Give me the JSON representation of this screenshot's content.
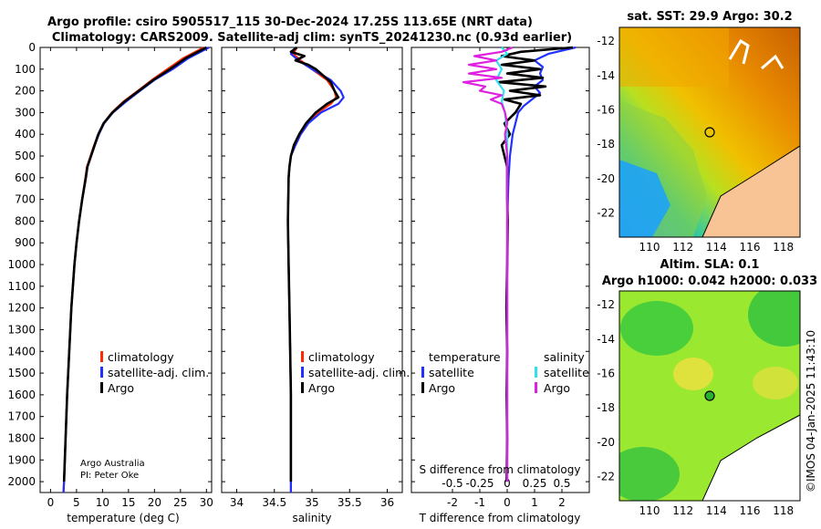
{
  "title_line1": "Argo profile: csiro 5905517_115 30-Dec-2024 17.25S 113.65E (NRT data)",
  "title_line2": "Climatology: CARS2009. Satellite-adj clim: synTS_20241230.nc (0.93d earlier)",
  "credit_org": "Argo Australia",
  "credit_pi": "PI: Peter Oke",
  "timestamp": "©IMOS 04-Jan-2025 11:43:10",
  "colors": {
    "climatology": "#ff2a00",
    "satellite": "#2030ff",
    "argo": "#000000",
    "sat_salt": "#30e0f0",
    "argo_salt": "#e020e0"
  },
  "map_sst": {
    "title": "sat. SST: 29.9 Argo: 30.2",
    "lon_ticks": [
      "110",
      "112",
      "114",
      "116",
      "118"
    ],
    "lat_ticks": [
      "-12",
      "-14",
      "-16",
      "-18",
      "-20",
      "-22"
    ]
  },
  "map_sla": {
    "title1": "Altim. SLA: 0.1",
    "title2": "Argo h1000: 0.042 h2000: 0.033",
    "lon_ticks": [
      "110",
      "112",
      "114",
      "116",
      "118"
    ],
    "lat_ticks": [
      "-12",
      "-14",
      "-16",
      "-18",
      "-20",
      "-22"
    ]
  },
  "legend": {
    "climatology": "climatology",
    "satellite_adj": "satellite-adj. clim.",
    "argo": "Argo",
    "temperature": "temperature",
    "salinity": "salinity",
    "satellite": "satellite"
  },
  "chart_data": [
    {
      "type": "line",
      "title": "",
      "xlabel": "temperature (deg C)",
      "ylabel": "",
      "xlim": [
        -2,
        31
      ],
      "ylim": [
        2050,
        0
      ],
      "xticks": [
        "0",
        "5",
        "10",
        "15",
        "20",
        "25",
        "30"
      ],
      "xtick_values": [
        0,
        5,
        10,
        15,
        20,
        25,
        30
      ],
      "yticks": [
        "0",
        "100",
        "200",
        "300",
        "400",
        "500",
        "600",
        "700",
        "800",
        "900",
        "1000",
        "1100",
        "1200",
        "1300",
        "1400",
        "1500",
        "1600",
        "1700",
        "1800",
        "1900",
        "2000"
      ],
      "ytick_values": [
        0,
        100,
        200,
        300,
        400,
        500,
        600,
        700,
        800,
        900,
        1000,
        1100,
        1200,
        1300,
        1400,
        1500,
        1600,
        1700,
        1800,
        1900,
        2000
      ],
      "series": [
        {
          "name": "climatology",
          "color_key": "climatology",
          "depth": [
            0,
            50,
            100,
            150,
            200,
            250,
            300,
            350,
            400,
            450,
            500,
            550,
            600,
            700,
            800,
            900,
            1000,
            1200,
            1400,
            1600,
            1800,
            2000,
            2050
          ],
          "values": [
            29.5,
            25.5,
            22.5,
            19.5,
            16.8,
            14.0,
            11.8,
            10.2,
            9.2,
            8.4,
            7.7,
            7.0,
            6.7,
            6.1,
            5.5,
            5.0,
            4.6,
            4.0,
            3.6,
            3.2,
            2.9,
            2.6,
            2.5
          ]
        },
        {
          "name": "satellite-adj. clim.",
          "color_key": "satellite",
          "depth": [
            0,
            50,
            100,
            150,
            200,
            250,
            300,
            350,
            400,
            450,
            500,
            550,
            600,
            700,
            800,
            900,
            1000,
            1200,
            1400,
            1600,
            1800,
            2000,
            2050
          ],
          "values": [
            30.5,
            26.5,
            23.5,
            20.0,
            17.2,
            14.5,
            12.0,
            10.3,
            9.3,
            8.5,
            7.8,
            7.1,
            6.8,
            6.1,
            5.5,
            5.0,
            4.6,
            4.0,
            3.6,
            3.2,
            2.9,
            2.6,
            2.5
          ]
        },
        {
          "name": "Argo",
          "color_key": "argo",
          "depth": [
            0,
            50,
            100,
            150,
            200,
            250,
            300,
            350,
            400,
            450,
            500,
            550,
            600,
            700,
            800,
            900,
            1000,
            1200,
            1400,
            1600,
            1800,
            2000
          ],
          "values": [
            30.0,
            26.0,
            23.0,
            19.8,
            17.0,
            14.2,
            11.9,
            10.2,
            9.2,
            8.5,
            7.8,
            7.1,
            6.8,
            6.1,
            5.5,
            5.0,
            4.6,
            4.0,
            3.6,
            3.2,
            2.9,
            2.6
          ]
        }
      ]
    },
    {
      "type": "line",
      "title": "",
      "xlabel": "salinity",
      "ylabel": "",
      "xlim": [
        33.8,
        36.2
      ],
      "ylim": [
        2050,
        0
      ],
      "xticks": [
        "34",
        "34.5",
        "35",
        "35.5",
        "36"
      ],
      "xtick_values": [
        34,
        34.5,
        35,
        35.5,
        36
      ],
      "series": [
        {
          "name": "climatology",
          "color_key": "climatology",
          "depth": [
            0,
            30,
            60,
            100,
            150,
            200,
            230,
            260,
            300,
            350,
            400,
            450,
            500,
            550,
            600,
            800,
            1000,
            1200,
            1400,
            1600,
            1800,
            2000,
            2050
          ],
          "values": [
            34.8,
            34.75,
            34.85,
            35.0,
            35.2,
            35.3,
            35.32,
            35.25,
            35.08,
            34.95,
            34.85,
            34.78,
            34.72,
            34.7,
            34.69,
            34.68,
            34.69,
            34.7,
            34.71,
            34.72,
            34.72,
            34.72,
            34.72
          ]
        },
        {
          "name": "satellite-adj. clim.",
          "color_key": "satellite",
          "depth": [
            0,
            30,
            60,
            100,
            150,
            200,
            230,
            260,
            300,
            350,
            400,
            450,
            500,
            550,
            600,
            800,
            1000,
            1200,
            1400,
            1600,
            1800,
            2000,
            2050
          ],
          "values": [
            34.78,
            34.72,
            34.82,
            35.0,
            35.25,
            35.38,
            35.42,
            35.35,
            35.12,
            34.95,
            34.85,
            34.78,
            34.72,
            34.7,
            34.69,
            34.68,
            34.69,
            34.7,
            34.71,
            34.72,
            34.72,
            34.72,
            34.72
          ]
        },
        {
          "name": "Argo",
          "color_key": "argo",
          "depth": [
            0,
            20,
            40,
            60,
            80,
            100,
            130,
            160,
            200,
            230,
            260,
            300,
            350,
            400,
            450,
            500,
            550,
            600,
            800,
            1000,
            1200,
            1400,
            1600,
            1800,
            2000
          ],
          "values": [
            34.8,
            34.72,
            34.9,
            34.78,
            34.95,
            35.05,
            35.15,
            35.25,
            35.3,
            35.35,
            35.2,
            35.05,
            34.92,
            34.83,
            34.76,
            34.72,
            34.7,
            34.69,
            34.68,
            34.69,
            34.7,
            34.71,
            34.72,
            34.72,
            34.72
          ]
        }
      ]
    },
    {
      "type": "line",
      "title": "",
      "xlabel": "T difference from climatology",
      "xlabel2": "S difference from climatology",
      "ylabel": "",
      "xlim": [
        -3.5,
        3.0
      ],
      "ylim": [
        2050,
        0
      ],
      "xticks": [
        "-2",
        "-1",
        "0",
        "1",
        "2"
      ],
      "xtick_values": [
        -2,
        -1,
        0,
        1,
        2
      ],
      "s_xticks": [
        "-0.5",
        "-0.25",
        "0",
        "0.25",
        "0.5"
      ],
      "s_xtick_values": [
        -0.5,
        -0.25,
        0,
        0.25,
        0.5
      ],
      "series": [
        {
          "name": "temperature satellite",
          "color_key": "satellite",
          "depth": [
            0,
            30,
            60,
            90,
            120,
            150,
            180,
            210,
            240,
            270,
            300,
            350,
            400,
            500,
            600,
            800,
            1000,
            1500,
            2000
          ],
          "values": [
            2.5,
            1.5,
            1.0,
            1.3,
            1.2,
            1.3,
            1.0,
            1.2,
            0.9,
            0.6,
            0.4,
            0.3,
            0.2,
            0.1,
            0.05,
            0.0,
            0.0,
            0.0,
            0.0
          ]
        },
        {
          "name": "temperature Argo",
          "color_key": "argo",
          "depth": [
            0,
            20,
            40,
            60,
            80,
            100,
            120,
            140,
            160,
            180,
            200,
            220,
            240,
            260,
            300,
            350,
            400,
            450,
            500,
            550,
            600,
            700,
            800,
            1000,
            1200,
            1400,
            1600,
            1800,
            2000
          ],
          "values": [
            2.4,
            0.5,
            -0.2,
            1.0,
            -0.2,
            1.2,
            0.0,
            1.3,
            -0.3,
            1.4,
            0.1,
            1.2,
            -0.1,
            0.5,
            0.3,
            -0.1,
            0.1,
            -0.2,
            -0.1,
            0.0,
            0.0,
            0.0,
            0.02,
            0.0,
            -0.03,
            0.0,
            -0.02,
            0.0,
            -0.02
          ]
        },
        {
          "name": "salinity satellite",
          "color_key": "sat_salt",
          "depth": [
            0,
            30,
            60,
            100,
            150,
            200,
            250,
            300,
            400,
            600,
            1000,
            1500,
            2000
          ],
          "values": [
            -0.05,
            0.0,
            -0.1,
            -0.05,
            -0.1,
            -0.03,
            -0.05,
            -0.02,
            0.0,
            0.0,
            0.0,
            0.0,
            0.0
          ]
        },
        {
          "name": "salinity Argo",
          "color_key": "argo_salt",
          "depth": [
            0,
            20,
            40,
            60,
            80,
            100,
            120,
            140,
            160,
            180,
            200,
            220,
            240,
            260,
            300,
            350,
            400,
            500,
            600,
            800,
            1000,
            1500,
            2000
          ],
          "values": [
            0.05,
            -0.05,
            -0.3,
            -0.1,
            -0.35,
            -0.1,
            -0.35,
            -0.05,
            -0.4,
            -0.2,
            -0.25,
            -0.05,
            -0.15,
            -0.05,
            -0.02,
            0.0,
            -0.02,
            0.0,
            0.0,
            0.0,
            0.0,
            0.0,
            0.0
          ]
        }
      ]
    }
  ]
}
